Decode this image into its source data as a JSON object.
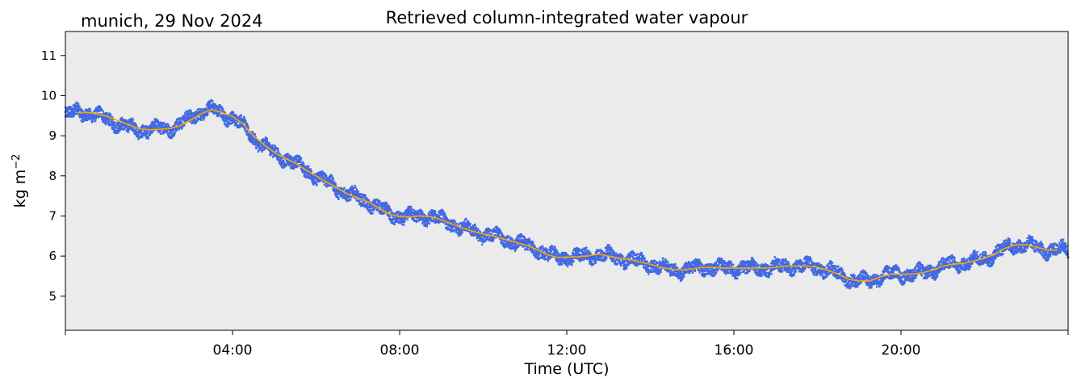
{
  "chart_data": {
    "type": "scatter",
    "title": "Retrieved column-integrated water vapour",
    "location_date": "munich, 29 Nov 2024",
    "xlabel": "Time (UTC)",
    "ylabel_prefix": "kg m",
    "ylabel_exp": "−2",
    "x_unit": "hours",
    "xlim": [
      0,
      24
    ],
    "ylim": [
      4.15,
      11.6
    ],
    "x_ticks": [
      {
        "value": 4,
        "label": "04:00"
      },
      {
        "value": 8,
        "label": "08:00"
      },
      {
        "value": 12,
        "label": "12:00"
      },
      {
        "value": 16,
        "label": "16:00"
      },
      {
        "value": 20,
        "label": "20:00"
      }
    ],
    "y_ticks": [
      {
        "value": 5,
        "label": "5"
      },
      {
        "value": 6,
        "label": "6"
      },
      {
        "value": 7,
        "label": "7"
      },
      {
        "value": 8,
        "label": "8"
      },
      {
        "value": 9,
        "label": "9"
      },
      {
        "value": 10,
        "label": "10"
      },
      {
        "value": 11,
        "label": "11"
      }
    ],
    "grid": false,
    "plot_background": "#ebebeb",
    "series": [
      {
        "style": "points",
        "color": "#4169e1",
        "x": [
          0.0,
          0.25,
          0.5,
          0.75,
          1.0,
          1.25,
          1.5,
          1.75,
          2.0,
          2.25,
          2.5,
          2.75,
          3.0,
          3.25,
          3.4,
          3.5,
          3.75,
          4.0,
          4.25,
          4.5,
          4.75,
          5.0,
          5.25,
          5.5,
          5.75,
          6.0,
          6.25,
          6.5,
          6.75,
          7.0,
          7.25,
          7.5,
          7.75,
          8.0,
          8.25,
          8.5,
          8.75,
          9.0,
          9.25,
          9.5,
          9.75,
          10.0,
          10.25,
          10.5,
          10.75,
          11.0,
          11.25,
          11.5,
          11.75,
          12.0,
          12.25,
          12.5,
          12.75,
          13.0,
          13.25,
          13.5,
          13.75,
          14.0,
          14.25,
          14.5,
          14.75,
          15.0,
          15.25,
          15.5,
          15.75,
          16.0,
          16.25,
          16.5,
          16.75,
          17.0,
          17.25,
          17.5,
          17.75,
          18.0,
          18.25,
          18.5,
          18.75,
          19.0,
          19.25,
          19.5,
          19.75,
          20.0,
          20.25,
          20.5,
          20.75,
          21.0,
          21.25,
          21.5,
          21.75,
          22.0,
          22.25,
          22.5,
          22.75,
          23.0,
          23.25,
          23.5,
          23.75,
          24.0
        ],
        "y": [
          9.5,
          9.6,
          9.58,
          9.5,
          9.42,
          9.3,
          9.2,
          9.15,
          9.15,
          9.18,
          9.2,
          9.28,
          9.45,
          9.6,
          9.65,
          9.65,
          9.55,
          9.45,
          9.25,
          8.95,
          8.75,
          8.55,
          8.45,
          8.3,
          8.15,
          8.0,
          7.85,
          7.7,
          7.55,
          7.45,
          7.35,
          7.2,
          7.05,
          6.98,
          6.98,
          7.0,
          6.98,
          6.9,
          6.8,
          6.7,
          6.62,
          6.55,
          6.5,
          6.42,
          6.35,
          6.28,
          6.18,
          6.05,
          5.97,
          5.97,
          5.98,
          6.0,
          6.05,
          6.0,
          5.95,
          5.92,
          5.85,
          5.8,
          5.72,
          5.67,
          5.65,
          5.68,
          5.72,
          5.72,
          5.7,
          5.7,
          5.7,
          5.7,
          5.7,
          5.72,
          5.75,
          5.75,
          5.75,
          5.72,
          5.65,
          5.55,
          5.42,
          5.38,
          5.38,
          5.48,
          5.55,
          5.55,
          5.55,
          5.58,
          5.65,
          5.75,
          5.8,
          5.82,
          5.88,
          5.95,
          6.05,
          6.2,
          6.28,
          6.28,
          6.22,
          6.15,
          6.15,
          6.15
        ]
      },
      {
        "style": "line",
        "color": "#ffa500",
        "x": [
          0.3,
          0.5,
          0.75,
          1.0,
          1.25,
          1.5,
          1.75,
          2.0,
          2.25,
          2.5,
          2.75,
          3.0,
          3.25,
          3.5,
          3.75,
          4.0,
          4.25,
          4.5,
          4.75,
          5.0,
          5.25,
          5.5,
          5.75,
          6.0,
          6.25,
          6.5,
          6.75,
          7.0,
          7.25,
          7.5,
          7.75,
          8.0,
          8.25,
          8.5,
          8.75,
          9.0,
          9.25,
          9.5,
          9.75,
          10.0,
          10.25,
          10.5,
          10.75,
          11.0,
          11.25,
          11.5,
          11.75,
          12.0,
          12.25,
          12.5,
          12.75,
          13.0,
          13.25,
          13.5,
          13.75,
          14.0,
          14.25,
          14.5,
          14.75,
          15.0,
          15.25,
          15.5,
          15.75,
          16.0,
          16.25,
          16.5,
          16.75,
          17.0,
          17.25,
          17.5,
          17.75,
          18.0,
          18.25,
          18.5,
          18.75,
          19.0,
          19.25,
          19.5,
          19.75,
          20.0,
          20.25,
          20.5,
          20.75,
          21.0,
          21.25,
          21.5,
          21.75,
          22.0,
          22.25,
          22.5,
          22.75,
          23.0,
          23.25,
          23.5,
          23.75
        ],
        "y": [
          9.57,
          9.58,
          9.55,
          9.48,
          9.38,
          9.28,
          9.18,
          9.15,
          9.16,
          9.18,
          9.25,
          9.4,
          9.55,
          9.65,
          9.58,
          9.48,
          9.3,
          9.0,
          8.78,
          8.58,
          8.45,
          8.32,
          8.15,
          8.0,
          7.85,
          7.7,
          7.55,
          7.45,
          7.35,
          7.2,
          7.05,
          6.98,
          6.98,
          7.0,
          6.98,
          6.9,
          6.8,
          6.7,
          6.62,
          6.55,
          6.5,
          6.42,
          6.35,
          6.28,
          6.18,
          6.05,
          5.97,
          5.97,
          5.98,
          6.0,
          6.05,
          6.0,
          5.95,
          5.92,
          5.85,
          5.8,
          5.72,
          5.67,
          5.65,
          5.68,
          5.72,
          5.72,
          5.7,
          5.7,
          5.7,
          5.7,
          5.7,
          5.72,
          5.75,
          5.75,
          5.75,
          5.72,
          5.65,
          5.55,
          5.42,
          5.38,
          5.38,
          5.48,
          5.55,
          5.55,
          5.55,
          5.58,
          5.65,
          5.75,
          5.8,
          5.82,
          5.88,
          5.95,
          6.05,
          6.2,
          6.28,
          6.28,
          6.22,
          6.15,
          6.15
        ]
      }
    ]
  }
}
